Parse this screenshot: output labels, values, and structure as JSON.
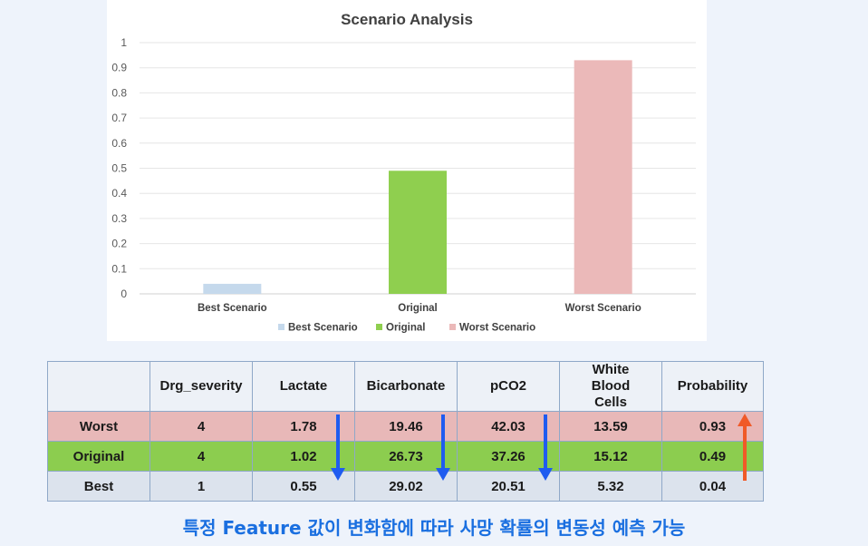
{
  "chart_data": {
    "type": "bar",
    "title": "Scenario Analysis",
    "categories": [
      "Best Scenario",
      "Original",
      "Worst Scenario"
    ],
    "values": [
      0.04,
      0.49,
      0.93
    ],
    "colors": [
      "#c5d9ec",
      "#8fcf4f",
      "#ebb9b9"
    ],
    "ylim": [
      0,
      1
    ],
    "yticks": [
      "0",
      "0.1",
      "0.2",
      "0.3",
      "0.4",
      "0.5",
      "0.6",
      "0.7",
      "0.8",
      "0.9",
      "1"
    ],
    "grid": true,
    "legend": [
      "Best Scenario",
      "Original",
      "Worst Scenario"
    ],
    "legend_position": "bottom"
  },
  "table": {
    "headers": [
      "",
      "Drg_severity",
      "Lactate",
      "Bicarbonate",
      "pCO2",
      "White Blood Cells",
      "Probability"
    ],
    "rows": [
      {
        "label": "Worst",
        "values": [
          "4",
          "1.78",
          "19.46",
          "42.03",
          "13.59",
          "0.93"
        ]
      },
      {
        "label": "Original",
        "values": [
          "4",
          "1.02",
          "26.73",
          "37.26",
          "15.12",
          "0.49"
        ]
      },
      {
        "label": "Best",
        "values": [
          "1",
          "0.55",
          "29.02",
          "20.51",
          "5.32",
          "0.04"
        ]
      }
    ]
  },
  "arrows": {
    "down_color": "#1f5cf0",
    "up_color": "#f05a28"
  },
  "footer": "특정 Feature 값이 변화함에 따라 사망 확률의 변동성 예측 가능"
}
